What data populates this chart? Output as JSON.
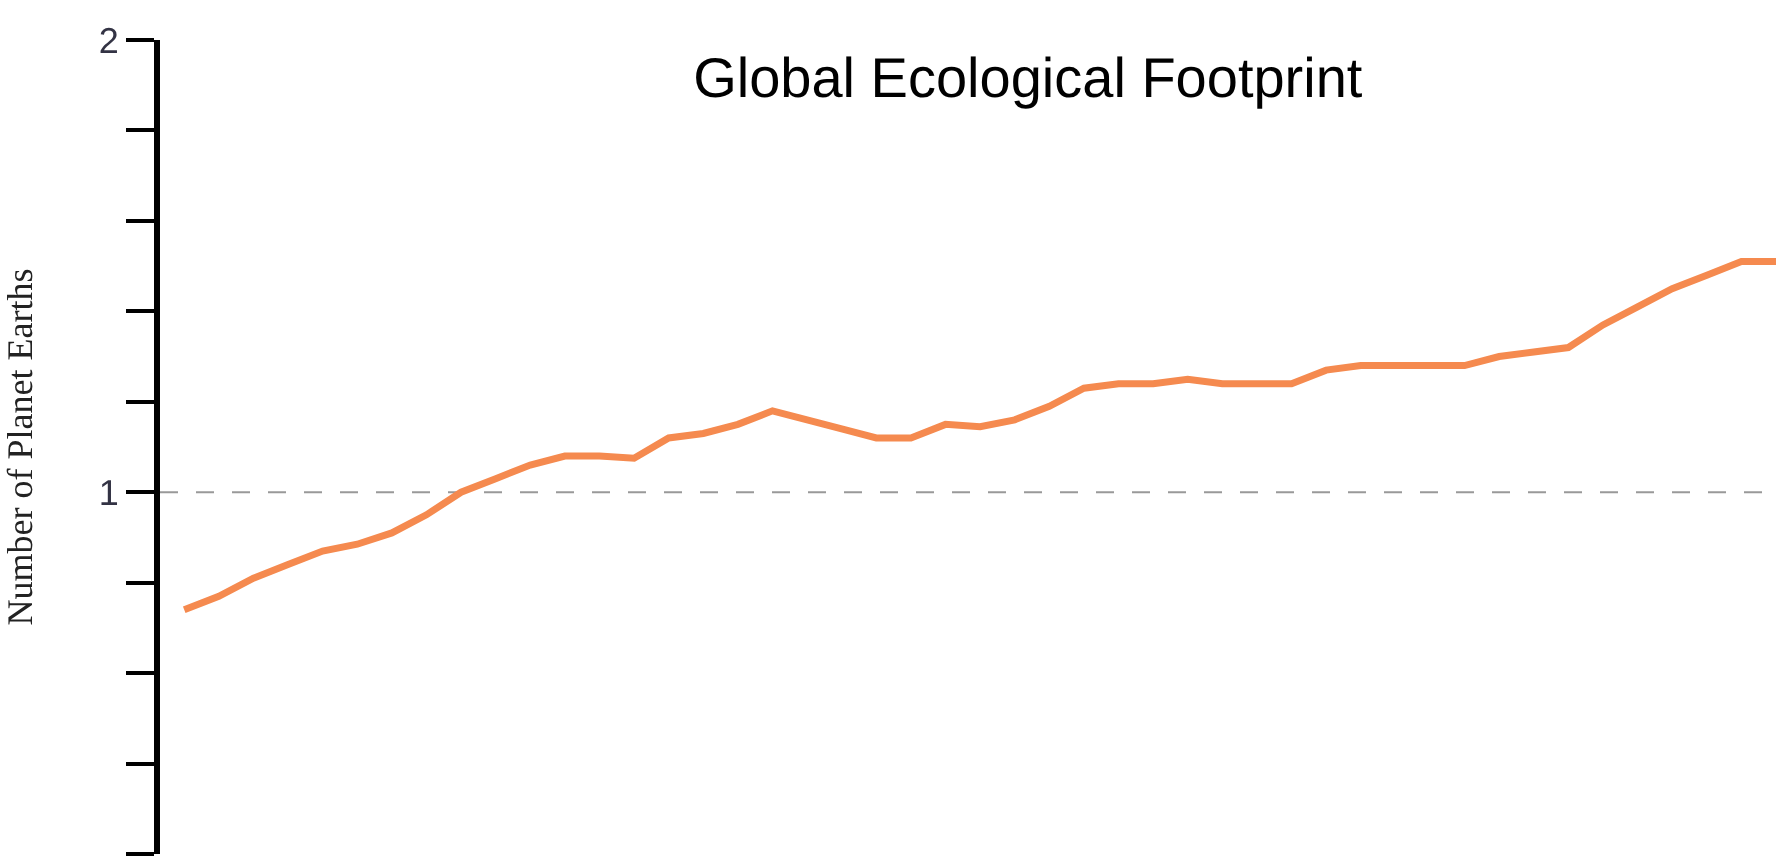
{
  "chart_data": {
    "type": "line",
    "title": "Global Ecological Footprint",
    "ylabel": "Number of Planet Earths",
    "categories": [
      null,
      null,
      null,
      null,
      null,
      null,
      null,
      null,
      null,
      null,
      null,
      null,
      null,
      null,
      null,
      null,
      null,
      null,
      null,
      null,
      null,
      null,
      null,
      null,
      null,
      null,
      null,
      null,
      null,
      null,
      null,
      null,
      null,
      null,
      null,
      null,
      null,
      null,
      null,
      null,
      null,
      null,
      null,
      null,
      null,
      null,
      null
    ],
    "series": [
      {
        "color": "#f58a4f",
        "values": [
          0.74,
          0.77,
          0.81,
          0.84,
          0.87,
          0.885,
          0.91,
          0.95,
          1.0,
          1.03,
          1.06,
          1.08,
          1.08,
          1.075,
          1.12,
          1.13,
          1.15,
          1.18,
          1.16,
          1.14,
          1.12,
          1.12,
          1.15,
          1.145,
          1.16,
          1.19,
          1.23,
          1.24,
          1.24,
          1.25,
          1.24,
          1.24,
          1.24,
          1.27,
          1.28,
          1.28,
          1.28,
          1.28,
          1.3,
          1.31,
          1.32,
          1.37,
          1.41,
          1.45,
          1.48,
          1.51,
          1.51
        ]
      }
    ],
    "ylim": [
      0.2,
      2
    ],
    "yticks": [
      {
        "value": 0.2,
        "label": null
      },
      {
        "value": 0.4,
        "label": null
      },
      {
        "value": 0.6,
        "label": null
      },
      {
        "value": 0.8,
        "label": null
      },
      1,
      {
        "value": 1.2,
        "label": null
      },
      {
        "value": 1.4,
        "label": null
      },
      {
        "value": 1.6,
        "label": null
      },
      {
        "value": 1.8,
        "label": null
      },
      2
    ],
    "ref_lines": [
      {
        "axis": "y",
        "value": 1,
        "color": "#999999",
        "line_style": "dashed"
      }
    ],
    "tick_labels": "y",
    "grid": false,
    "marker": "none",
    "line_style": "solid"
  }
}
